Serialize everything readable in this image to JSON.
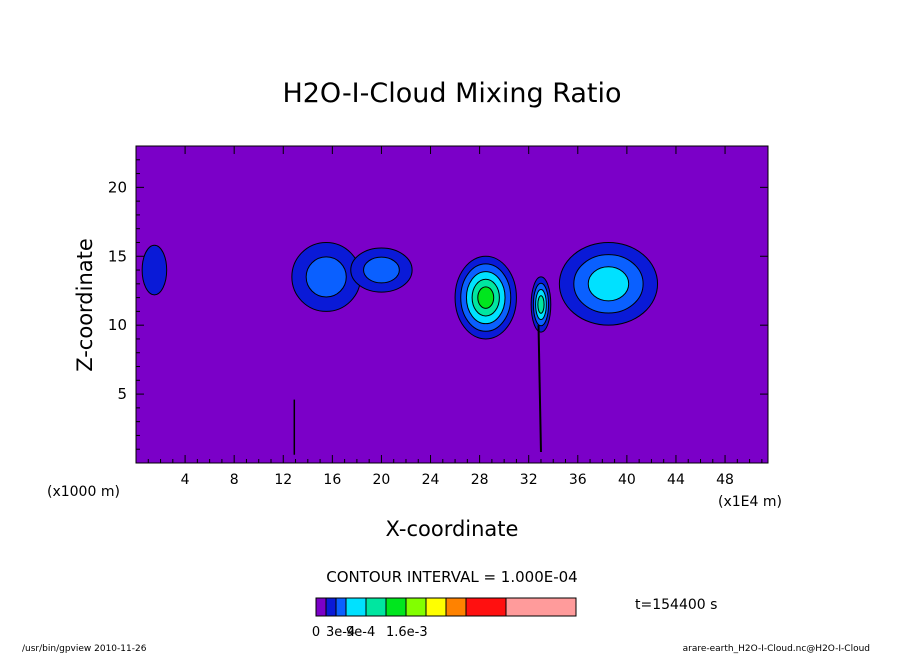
{
  "chart_data": {
    "type": "heatmap",
    "title": "H2O-I-Cloud Mixing Ratio",
    "xlabel": "X-coordinate",
    "ylabel": "Z-coordinate",
    "x_unit_left": "(x1000 m)",
    "x_unit_right": "(x1E4 m)",
    "xlim": [
      0,
      51.5
    ],
    "ylim": [
      0,
      23
    ],
    "x_ticks": [
      4,
      8,
      12,
      16,
      20,
      24,
      28,
      32,
      36,
      40,
      44,
      48
    ],
    "y_ticks": [
      5,
      10,
      15,
      20
    ],
    "grid": false,
    "contour_interval_text": "CONTOUR INTERVAL = 1.000E-04",
    "time_text": "t=154400 s",
    "colorbar": {
      "colors": [
        "#7b00c8",
        "#0a1ad7",
        "#0a60ff",
        "#00e1ff",
        "#00e6a0",
        "#00e61e",
        "#82ff00",
        "#ffff00",
        "#ff8200",
        "#ff1010",
        "#ff9b9b"
      ],
      "labels": [
        {
          "text": "0",
          "boundary": 0
        },
        {
          "text": "3e-4",
          "boundary": 1
        },
        {
          "text": "9e-4",
          "boundary": 3
        },
        {
          "text": "1.6e-3",
          "boundary": 5
        }
      ]
    },
    "features": [
      {
        "x": 1.5,
        "z": 14.0,
        "rx": 1.0,
        "rz": 1.8,
        "levels": 1
      },
      {
        "x": 15.5,
        "z": 13.5,
        "rx": 2.8,
        "rz": 2.5,
        "levels": 2
      },
      {
        "x": 20.0,
        "z": 14.0,
        "rx": 2.5,
        "rz": 1.6,
        "levels": 2
      },
      {
        "x": 28.5,
        "z": 12.0,
        "rx": 2.5,
        "rz": 3.0,
        "levels": 5
      },
      {
        "x": 33.0,
        "z": 11.5,
        "rx": 0.8,
        "rz": 2.0,
        "levels": 4
      },
      {
        "x": 38.5,
        "z": 13.0,
        "rx": 4.0,
        "rz": 3.0,
        "levels": 3
      }
    ]
  },
  "footer": {
    "left": "/usr/bin/gpview  2010-11-26",
    "right": "arare-earth_H2O-I-Cloud.nc@H2O-I-Cloud"
  }
}
